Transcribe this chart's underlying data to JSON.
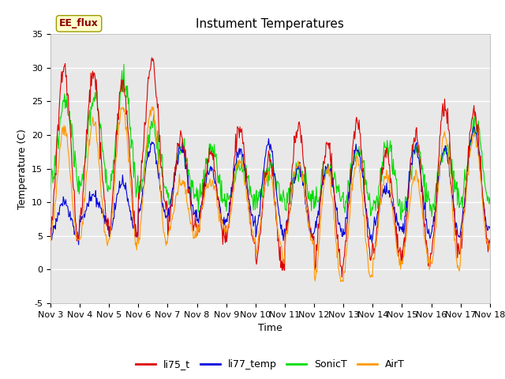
{
  "title": "Instument Temperatures",
  "ylabel": "Temperature (C)",
  "xlabel": "Time",
  "annotation": "EE_flux",
  "ylim": [
    -5,
    35
  ],
  "y_ticks": [
    -5,
    0,
    5,
    10,
    15,
    20,
    25,
    30,
    35
  ],
  "x_tick_labels": [
    "Nov 3",
    "Nov 4",
    "Nov 5",
    "Nov 6",
    "Nov 7",
    "Nov 8",
    "Nov 9",
    "Nov 10",
    "Nov 11",
    "Nov 12",
    "Nov 13",
    "Nov 14",
    "Nov 15",
    "Nov 16",
    "Nov 17",
    "Nov 18"
  ],
  "series_colors": {
    "li75_t": "#dd0000",
    "li77_temp": "#0000dd",
    "SonicT": "#00dd00",
    "AirT": "#ff9900"
  },
  "background_color": "#e8e8e8",
  "title_fontsize": 11,
  "axis_fontsize": 9,
  "tick_fontsize": 8,
  "legend_fontsize": 9
}
